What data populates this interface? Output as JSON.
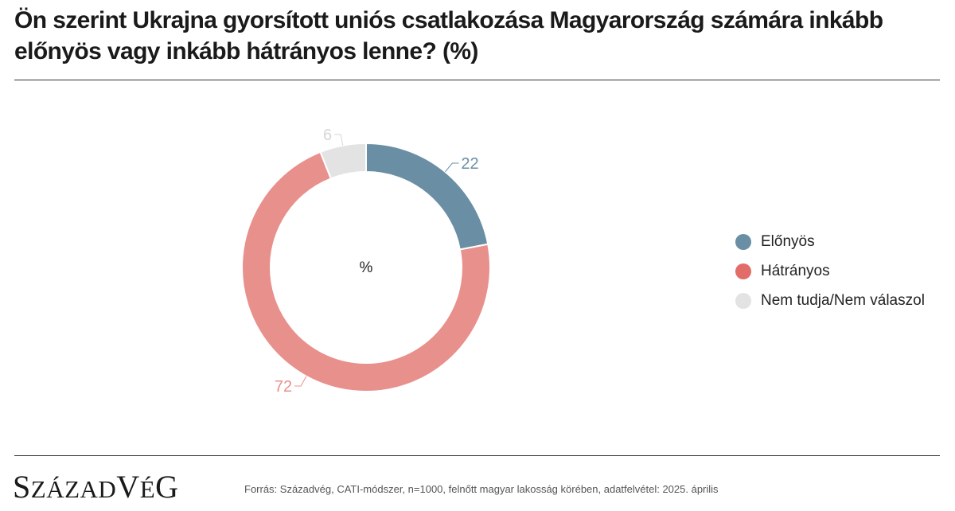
{
  "title": "Ön szerint Ukrajna gyorsított uniós csatlakozása Magyarország számára inkább előnyös vagy inkább hátrányos lenne? (%)",
  "chart_data": {
    "type": "pie",
    "donut": true,
    "center_label": "%",
    "categories": [
      "Előnyös",
      "Hátrányos",
      "Nem tudja/Nem válaszol"
    ],
    "values": [
      22,
      72,
      6
    ],
    "colors": [
      "#6a8fa5",
      "#e8908c",
      "#e3e3e3"
    ],
    "label_colors": [
      "#6a8fa5",
      "#e8908c",
      "#d6d6d6"
    ],
    "legend_colors": [
      "#6a8fa5",
      "#e26d68",
      "#e3e3e3"
    ],
    "legend_position": "right",
    "start_angle_deg": 0,
    "direction": "clockwise"
  },
  "footer": {
    "brand": "SZÁZADVÉG",
    "source": "Forrás: Századvég, CATI-módszer, n=1000, felnőtt magyar lakosság körében, adatfelvétel: 2025. április"
  }
}
